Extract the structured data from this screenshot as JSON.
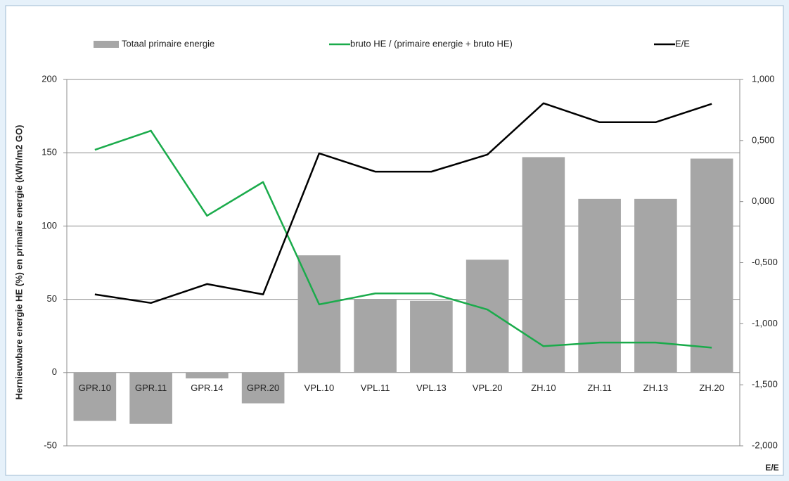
{
  "chart_data": {
    "type": "bar",
    "y_axis_label": "Hernieuwbare energie HE (%) en primaire energie (kWh/m2 GO)",
    "y2_axis_label": "E/E",
    "categories": [
      "GPR.10",
      "GPR.11",
      "GPR.14",
      "GPR.20",
      "VPL.10",
      "VPL.11",
      "VPL.13",
      "VPL.20",
      "ZH.10",
      "ZH.11",
      "ZH.13",
      "ZH.20"
    ],
    "series": [
      {
        "name": "Totaal primaire energie",
        "type": "bar",
        "color": "#a6a6a6",
        "values": [
          -33,
          -35,
          -4,
          -21,
          80,
          50,
          49,
          77,
          147,
          118.5,
          118.5,
          146
        ]
      },
      {
        "name": "bruto HE / (primaire energie + bruto HE)",
        "type": "line",
        "color": "#1aab4b",
        "values": [
          152,
          165,
          107,
          130,
          46.5,
          54,
          54,
          43,
          18,
          20.5,
          20.5,
          17
        ]
      },
      {
        "name": "E/E",
        "type": "line",
        "axis": "y2",
        "color": "#000000",
        "values": [
          -0.76,
          -0.83,
          -0.675,
          -0.76,
          0.395,
          0.245,
          0.245,
          0.385,
          0.805,
          0.65,
          0.65,
          0.8
        ]
      }
    ],
    "ylim": [
      -50,
      200
    ],
    "yticks": [
      -50,
      0,
      50,
      100,
      150,
      200
    ],
    "y2lim": [
      -2,
      1
    ],
    "y2ticks": [
      {
        "value": -2,
        "label": "-2,000"
      },
      {
        "value": -1.5,
        "label": "-1,500"
      },
      {
        "value": -1,
        "label": "-1,000"
      },
      {
        "value": -0.5,
        "label": "-0,500"
      },
      {
        "value": 0,
        "label": "0,000"
      },
      {
        "value": 0.5,
        "label": "0,500"
      },
      {
        "value": 1,
        "label": "1,000"
      }
    ],
    "grid": true,
    "legend": "top"
  }
}
